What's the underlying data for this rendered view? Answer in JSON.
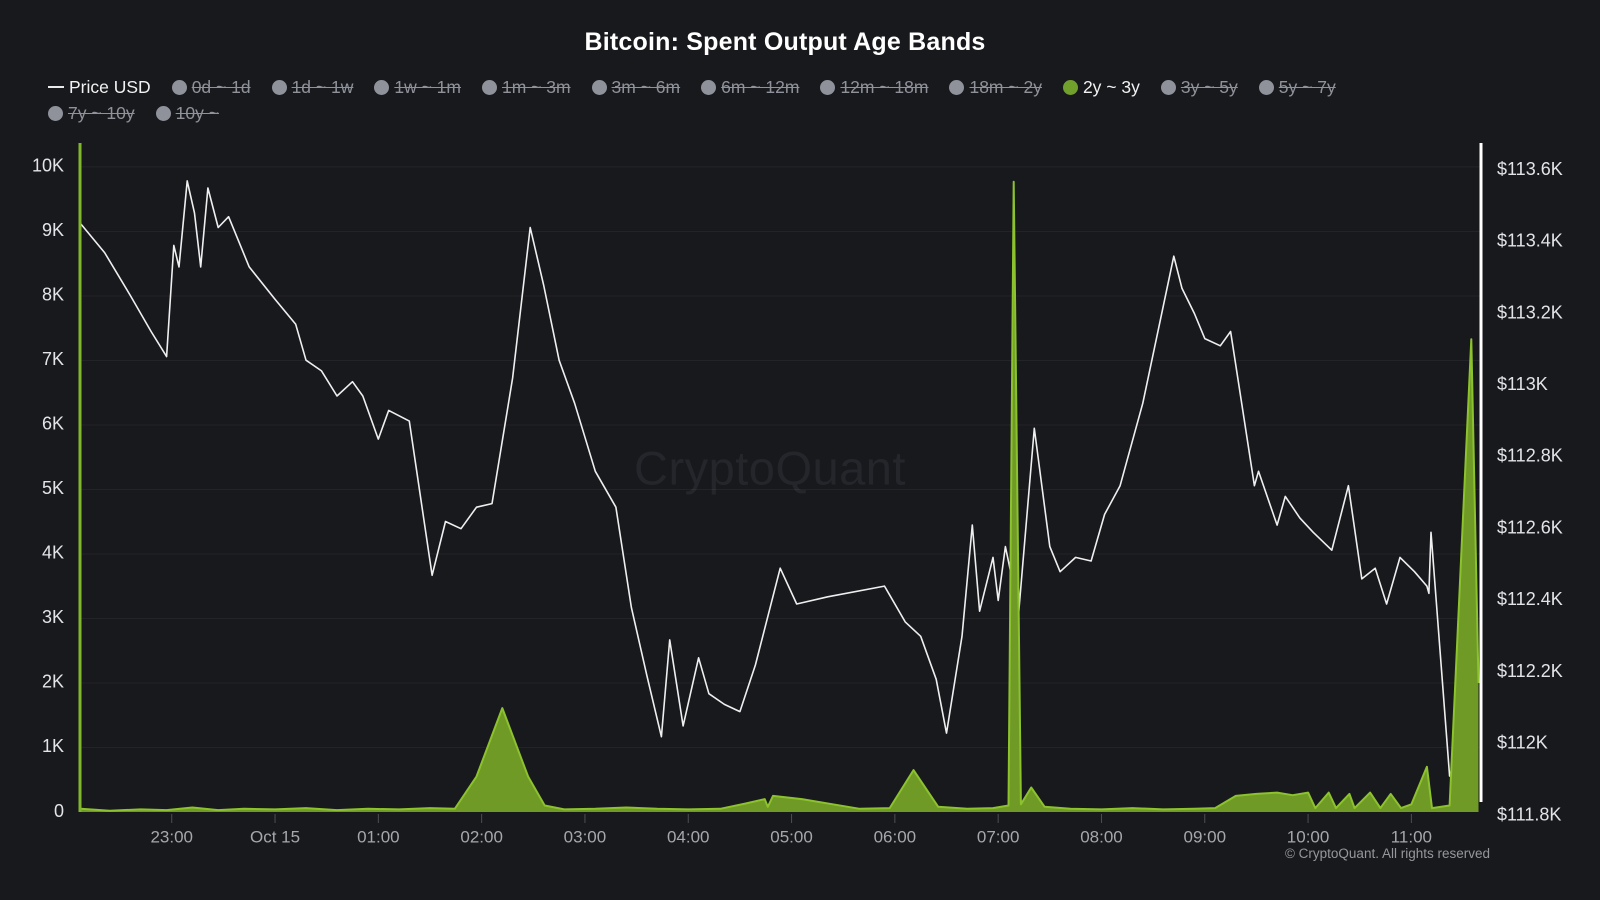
{
  "title": "Bitcoin: Spent Output Age Bands",
  "watermark": "CryptoQuant",
  "footer": "© CryptoQuant. All rights reserved",
  "colors": {
    "background": "#18191d",
    "title_color": "#ffffff",
    "price_line": "#efefef",
    "band_fill": "#6f9a26",
    "band_stroke": "#8cc22e",
    "legend_active_dot": "#72a02c",
    "legend_active_text": "#f2f2f2",
    "legend_inactive": "#8f929b",
    "grid": "rgba(255,255,255,0.05)",
    "left_axis_line": "#7fb62b",
    "right_axis_line": "#ffffff",
    "y_label": "#e3e4e7",
    "x_label": "#a5a7ac",
    "tick_mark": "#4d4e53",
    "watermark_color": "#24262b",
    "footer_color": "#95979c"
  },
  "legend": {
    "rows": [
      [
        {
          "label": "Price USD",
          "marker": "line",
          "state": "active"
        },
        {
          "label": "0d ~ 1d",
          "marker": "dot",
          "state": "inactive"
        },
        {
          "label": "1d ~ 1w",
          "marker": "dot",
          "state": "inactive"
        },
        {
          "label": "1w ~ 1m",
          "marker": "dot",
          "state": "inactive"
        },
        {
          "label": "1m ~ 3m",
          "marker": "dot",
          "state": "inactive"
        },
        {
          "label": "3m ~ 6m",
          "marker": "dot",
          "state": "inactive"
        },
        {
          "label": "6m ~ 12m",
          "marker": "dot",
          "state": "inactive"
        },
        {
          "label": "12m ~ 18m",
          "marker": "dot",
          "state": "inactive"
        },
        {
          "label": "18m ~ 2y",
          "marker": "dot",
          "state": "inactive"
        },
        {
          "label": "2y ~ 3y",
          "marker": "dot",
          "state": "active"
        },
        {
          "label": "3y ~ 5y",
          "marker": "dot",
          "state": "inactive"
        },
        {
          "label": "5y ~ 7y",
          "marker": "dot",
          "state": "inactive"
        }
      ],
      [
        {
          "label": "7y ~ 10y",
          "marker": "dot",
          "state": "inactive"
        },
        {
          "label": "10y ~",
          "marker": "dot",
          "state": "inactive"
        }
      ]
    ]
  },
  "chart_data": {
    "type": "line+area",
    "title": "Bitcoin: Spent Output Age Bands",
    "x_axis": {
      "t_unit": "hours since 22:00 (Oct 14 -> Oct 15)",
      "range": [
        0.112,
        13.674
      ],
      "ticks": [
        {
          "t": 1,
          "label": "23:00"
        },
        {
          "t": 2,
          "label": "Oct 15"
        },
        {
          "t": 3,
          "label": "01:00"
        },
        {
          "t": 4,
          "label": "02:00"
        },
        {
          "t": 5,
          "label": "03:00"
        },
        {
          "t": 6,
          "label": "04:00"
        },
        {
          "t": 7,
          "label": "05:00"
        },
        {
          "t": 8,
          "label": "06:00"
        },
        {
          "t": 9,
          "label": "07:00"
        },
        {
          "t": 10,
          "label": "08:00"
        },
        {
          "t": 11,
          "label": "09:00"
        },
        {
          "t": 12,
          "label": "10:00"
        },
        {
          "t": 13,
          "label": "11:00"
        }
      ]
    },
    "left_y_axis": {
      "unit": "spent outputs (count)",
      "range": [
        0,
        10340
      ],
      "grid": true,
      "ticks": [
        {
          "v": 10000,
          "label": "10K"
        },
        {
          "v": 9000,
          "label": "9K"
        },
        {
          "v": 8000,
          "label": "8K"
        },
        {
          "v": 7000,
          "label": "7K"
        },
        {
          "v": 6000,
          "label": "6K"
        },
        {
          "v": 5000,
          "label": "5K"
        },
        {
          "v": 4000,
          "label": "4K"
        },
        {
          "v": 3000,
          "label": "3K"
        },
        {
          "v": 2000,
          "label": "2K"
        },
        {
          "v": 1000,
          "label": "1K"
        },
        {
          "v": 0,
          "label": "0"
        }
      ]
    },
    "right_y_axis": {
      "unit": "USD",
      "range": [
        111810,
        113670
      ],
      "ticks": [
        {
          "v": 113600,
          "label": "$113.6K"
        },
        {
          "v": 113400,
          "label": "$113.4K"
        },
        {
          "v": 113200,
          "label": "$113.2K"
        },
        {
          "v": 113000,
          "label": "$113K"
        },
        {
          "v": 112800,
          "label": "$112.8K"
        },
        {
          "v": 112600,
          "label": "$112.6K"
        },
        {
          "v": 112400,
          "label": "$112.4K"
        },
        {
          "v": 112200,
          "label": "$112.2K"
        },
        {
          "v": 112000,
          "label": "$112K"
        },
        {
          "v": 111800,
          "label": "$111.8K"
        }
      ]
    },
    "series": [
      {
        "name": "Price USD",
        "type": "line",
        "axis": "right",
        "color_key": "price_line",
        "points": [
          [
            0.12,
            113450
          ],
          [
            0.35,
            113370
          ],
          [
            0.6,
            113250
          ],
          [
            0.8,
            113150
          ],
          [
            0.95,
            113080
          ],
          [
            1.02,
            113390
          ],
          [
            1.07,
            113330
          ],
          [
            1.15,
            113570
          ],
          [
            1.22,
            113480
          ],
          [
            1.28,
            113330
          ],
          [
            1.35,
            113550
          ],
          [
            1.45,
            113440
          ],
          [
            1.55,
            113470
          ],
          [
            1.75,
            113330
          ],
          [
            2.0,
            113240
          ],
          [
            2.2,
            113170
          ],
          [
            2.3,
            113070
          ],
          [
            2.45,
            113040
          ],
          [
            2.6,
            112970
          ],
          [
            2.75,
            113010
          ],
          [
            2.85,
            112970
          ],
          [
            3.0,
            112850
          ],
          [
            3.1,
            112930
          ],
          [
            3.3,
            112900
          ],
          [
            3.52,
            112470
          ],
          [
            3.65,
            112620
          ],
          [
            3.8,
            112600
          ],
          [
            3.95,
            112660
          ],
          [
            4.1,
            112670
          ],
          [
            4.3,
            113020
          ],
          [
            4.47,
            113440
          ],
          [
            4.6,
            113280
          ],
          [
            4.75,
            113070
          ],
          [
            4.9,
            112950
          ],
          [
            5.1,
            112760
          ],
          [
            5.3,
            112660
          ],
          [
            5.45,
            112380
          ],
          [
            5.6,
            112190
          ],
          [
            5.74,
            112020
          ],
          [
            5.82,
            112290
          ],
          [
            5.95,
            112050
          ],
          [
            6.1,
            112240
          ],
          [
            6.2,
            112140
          ],
          [
            6.35,
            112110
          ],
          [
            6.5,
            112090
          ],
          [
            6.65,
            112220
          ],
          [
            6.89,
            112490
          ],
          [
            7.05,
            112390
          ],
          [
            7.35,
            112410
          ],
          [
            7.9,
            112440
          ],
          [
            8.1,
            112340
          ],
          [
            8.25,
            112300
          ],
          [
            8.4,
            112180
          ],
          [
            8.5,
            112030
          ],
          [
            8.65,
            112300
          ],
          [
            8.75,
            112610
          ],
          [
            8.82,
            112370
          ],
          [
            8.95,
            112520
          ],
          [
            9.0,
            112400
          ],
          [
            9.07,
            112550
          ],
          [
            9.2,
            112370
          ],
          [
            9.35,
            112880
          ],
          [
            9.5,
            112550
          ],
          [
            9.6,
            112480
          ],
          [
            9.75,
            112520
          ],
          [
            9.9,
            112510
          ],
          [
            10.03,
            112640
          ],
          [
            10.18,
            112720
          ],
          [
            10.4,
            112950
          ],
          [
            10.7,
            113360
          ],
          [
            10.78,
            113270
          ],
          [
            10.9,
            113200
          ],
          [
            11.0,
            113130
          ],
          [
            11.15,
            113110
          ],
          [
            11.25,
            113150
          ],
          [
            11.48,
            112720
          ],
          [
            11.52,
            112760
          ],
          [
            11.7,
            112610
          ],
          [
            11.78,
            112690
          ],
          [
            11.92,
            112630
          ],
          [
            12.05,
            112590
          ],
          [
            12.23,
            112540
          ],
          [
            12.39,
            112720
          ],
          [
            12.52,
            112460
          ],
          [
            12.65,
            112490
          ],
          [
            12.76,
            112390
          ],
          [
            12.89,
            112520
          ],
          [
            13.03,
            112480
          ],
          [
            13.15,
            112440
          ],
          [
            13.17,
            112420
          ],
          [
            13.19,
            112590
          ],
          [
            13.37,
            111910
          ],
          [
            13.6,
            112120
          ]
        ]
      },
      {
        "name": "2y ~ 3y",
        "type": "area",
        "axis": "left",
        "color_key": "band_fill",
        "stroke_key": "band_stroke",
        "points": [
          [
            0.12,
            50
          ],
          [
            0.4,
            20
          ],
          [
            0.7,
            40
          ],
          [
            0.95,
            30
          ],
          [
            1.2,
            70
          ],
          [
            1.45,
            30
          ],
          [
            1.7,
            50
          ],
          [
            2.0,
            40
          ],
          [
            2.3,
            60
          ],
          [
            2.6,
            30
          ],
          [
            2.9,
            50
          ],
          [
            3.2,
            40
          ],
          [
            3.5,
            60
          ],
          [
            3.74,
            50
          ],
          [
            3.95,
            550
          ],
          [
            4.2,
            1610
          ],
          [
            4.45,
            550
          ],
          [
            4.61,
            100
          ],
          [
            4.8,
            40
          ],
          [
            5.1,
            50
          ],
          [
            5.4,
            70
          ],
          [
            5.7,
            50
          ],
          [
            6.0,
            40
          ],
          [
            6.31,
            50
          ],
          [
            6.55,
            130
          ],
          [
            6.74,
            200
          ],
          [
            6.77,
            80
          ],
          [
            6.82,
            250
          ],
          [
            7.1,
            200
          ],
          [
            7.4,
            120
          ],
          [
            7.66,
            50
          ],
          [
            7.95,
            60
          ],
          [
            8.18,
            650
          ],
          [
            8.42,
            80
          ],
          [
            8.7,
            50
          ],
          [
            8.95,
            60
          ],
          [
            9.1,
            100
          ],
          [
            9.15,
            9770
          ],
          [
            9.22,
            120
          ],
          [
            9.32,
            380
          ],
          [
            9.45,
            80
          ],
          [
            9.7,
            50
          ],
          [
            10.0,
            40
          ],
          [
            10.3,
            60
          ],
          [
            10.6,
            40
          ],
          [
            10.9,
            50
          ],
          [
            11.1,
            60
          ],
          [
            11.3,
            250
          ],
          [
            11.5,
            280
          ],
          [
            11.7,
            300
          ],
          [
            11.85,
            260
          ],
          [
            12.0,
            300
          ],
          [
            12.07,
            60
          ],
          [
            12.2,
            300
          ],
          [
            12.27,
            60
          ],
          [
            12.4,
            280
          ],
          [
            12.45,
            60
          ],
          [
            12.6,
            300
          ],
          [
            12.7,
            60
          ],
          [
            12.8,
            280
          ],
          [
            12.9,
            60
          ],
          [
            13.0,
            120
          ],
          [
            13.15,
            700
          ],
          [
            13.2,
            60
          ],
          [
            13.37,
            100
          ],
          [
            13.58,
            7330
          ],
          [
            13.65,
            2000
          ]
        ]
      }
    ]
  }
}
